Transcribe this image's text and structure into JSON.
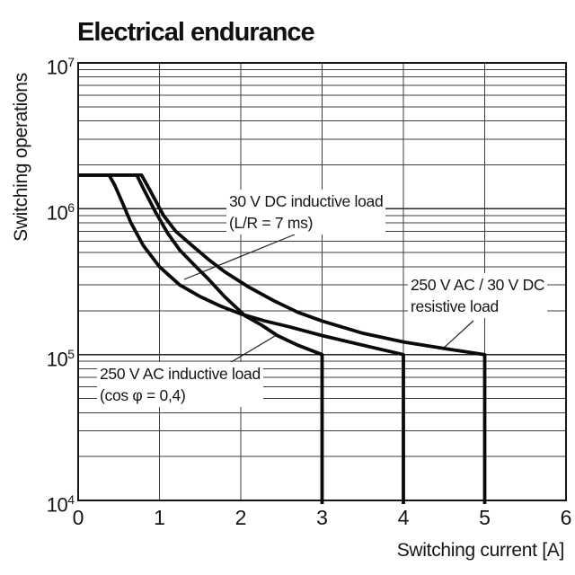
{
  "title": "Electrical endurance",
  "axes": {
    "x_label": "Switching current [A]",
    "y_label": "Switching operations",
    "x_ticks": [
      "0",
      "1",
      "2",
      "3",
      "4",
      "5",
      "6"
    ],
    "y_ticks": [
      {
        "base": "10",
        "exp": "7"
      },
      {
        "base": "10",
        "exp": "6"
      },
      {
        "base": "10",
        "exp": "5"
      },
      {
        "base": "10",
        "exp": "4"
      }
    ]
  },
  "annotations": {
    "dc_inductive": {
      "line1": "30 V DC inductive load",
      "line2": "(L/R = 7 ms)"
    },
    "resistive": {
      "line1": "250 V AC / 30 V DC",
      "line2": "resistive load"
    },
    "ac_inductive": {
      "line1": "250 V AC inductive load",
      "line2": "(cos φ = 0,4)"
    }
  },
  "chart_data": {
    "type": "line",
    "title": "Electrical endurance",
    "xlabel": "Switching current [A]",
    "ylabel": "Switching operations",
    "xlim": [
      0,
      6
    ],
    "ylim": [
      10000,
      10000000
    ],
    "y_scale": "log",
    "grid": "horizontal log minor gridlines per decade; vertical gridlines at 1-5 A",
    "legend_position": "inline text annotations with leader lines",
    "plateau_operations": 1700000,
    "series": [
      {
        "name": "250 V AC / 30 V DC resistive load",
        "max_switching_current_A": 5,
        "end_operations": 100000,
        "points": [
          [
            0,
            1700000
          ],
          [
            0.78,
            1700000
          ],
          [
            0.88,
            1350000
          ],
          [
            1.05,
            900000
          ],
          [
            1.2,
            700000
          ],
          [
            1.4,
            560000
          ],
          [
            1.6,
            450000
          ],
          [
            1.8,
            370000
          ],
          [
            2.1,
            290000
          ],
          [
            2.4,
            235000
          ],
          [
            2.7,
            195000
          ],
          [
            3.0,
            170000
          ],
          [
            3.5,
            140000
          ],
          [
            4.0,
            122000
          ],
          [
            4.5,
            110000
          ],
          [
            5.0,
            100000
          ],
          [
            5.0,
            10000
          ]
        ]
      },
      {
        "name": "30 V DC inductive load (L/R = 7 ms)",
        "max_switching_current_A": 4,
        "end_operations": 100000,
        "points": [
          [
            0,
            1700000
          ],
          [
            0.38,
            1700000
          ],
          [
            0.45,
            1450000
          ],
          [
            0.55,
            1080000
          ],
          [
            0.65,
            800000
          ],
          [
            0.8,
            560000
          ],
          [
            1.0,
            400000
          ],
          [
            1.25,
            300000
          ],
          [
            1.5,
            250000
          ],
          [
            1.75,
            215000
          ],
          [
            2.0,
            190000
          ],
          [
            2.3,
            170000
          ],
          [
            2.6,
            155000
          ],
          [
            3.0,
            135000
          ],
          [
            3.5,
            116000
          ],
          [
            4.0,
            100000
          ],
          [
            4.0,
            10000
          ]
        ]
      },
      {
        "name": "250 V AC inductive load (cos φ = 0,4)",
        "max_switching_current_A": 3,
        "end_operations": 100000,
        "points": [
          [
            0,
            1700000
          ],
          [
            0.72,
            1700000
          ],
          [
            0.8,
            1380000
          ],
          [
            0.95,
            950000
          ],
          [
            1.1,
            680000
          ],
          [
            1.25,
            520000
          ],
          [
            1.45,
            400000
          ],
          [
            1.6,
            330000
          ],
          [
            1.8,
            250000
          ],
          [
            2.05,
            185000
          ],
          [
            2.25,
            160000
          ],
          [
            2.45,
            135000
          ],
          [
            2.7,
            116000
          ],
          [
            3.0,
            100000
          ],
          [
            3.0,
            10000
          ]
        ]
      }
    ]
  }
}
